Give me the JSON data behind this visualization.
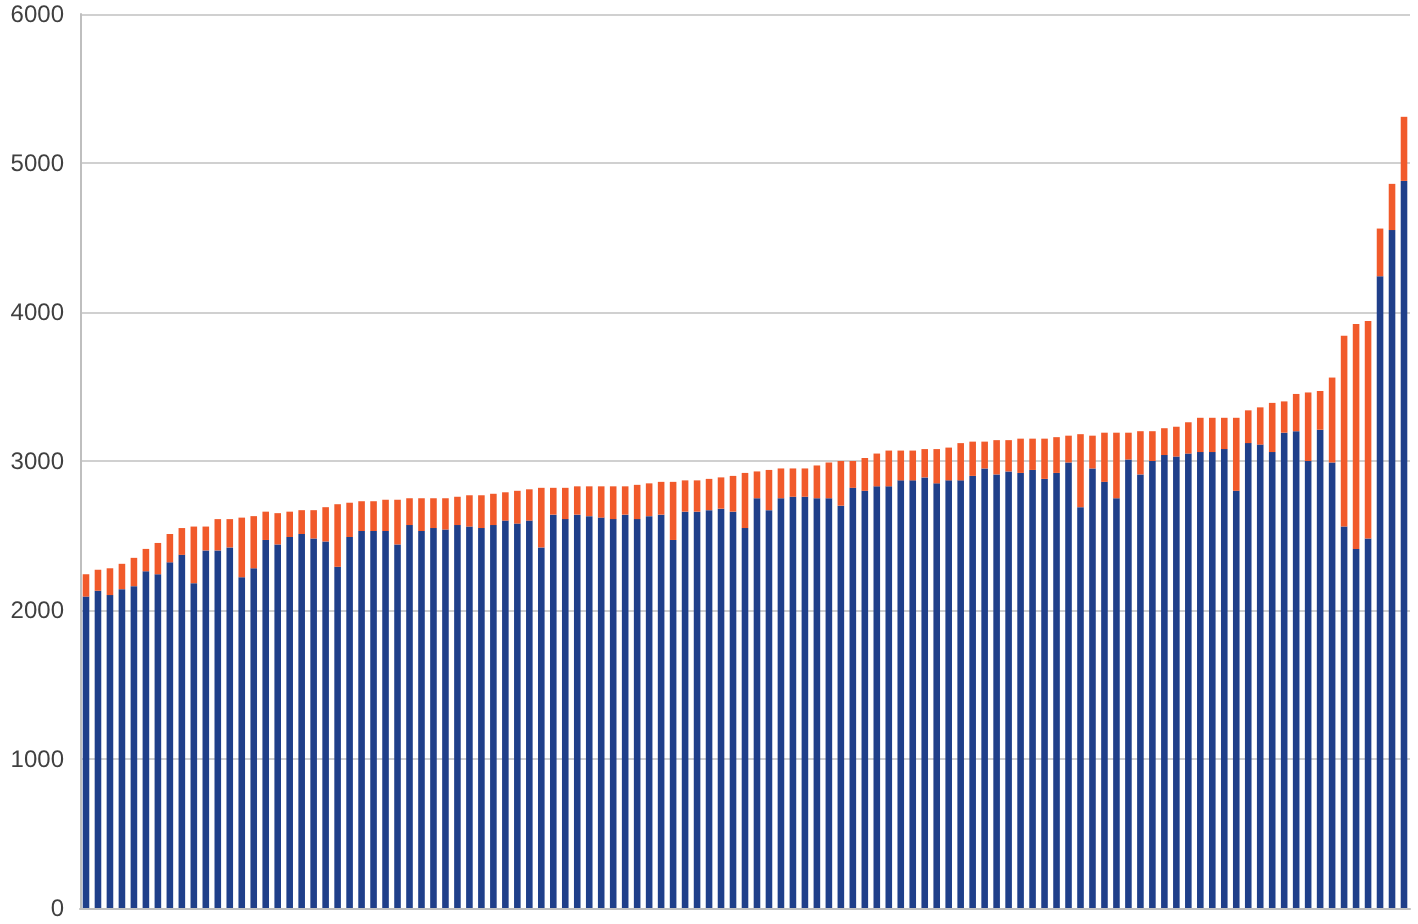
{
  "chart_data": {
    "type": "bar",
    "stacked": true,
    "grid": "y",
    "ylim": [
      0,
      6000
    ],
    "yticks": [
      0,
      1000,
      2000,
      3000,
      4000,
      5000,
      6000
    ],
    "categories": [
      null,
      null,
      null,
      null,
      null,
      null,
      null,
      null,
      null,
      null,
      null,
      null,
      null,
      null,
      null,
      null,
      null,
      null,
      null,
      null,
      null,
      null,
      null,
      null,
      null,
      null,
      null,
      null,
      null,
      null,
      null,
      null,
      null,
      null,
      null,
      null,
      null,
      null,
      null,
      null,
      null,
      null,
      null,
      null,
      null,
      null,
      null,
      null,
      null,
      null,
      null,
      null,
      null,
      null,
      null,
      null,
      null,
      null,
      null,
      null,
      null,
      null,
      null,
      null,
      null,
      null,
      null,
      null,
      null,
      null,
      null,
      null,
      null,
      null,
      null,
      null,
      null,
      null,
      null,
      null,
      null,
      null,
      null,
      null,
      null,
      null,
      null,
      null,
      null,
      null,
      null,
      null,
      null,
      null,
      null,
      null,
      null,
      null,
      null,
      null,
      null,
      null,
      null,
      null,
      null,
      null,
      null,
      null,
      null,
      null,
      null
    ],
    "series": [
      {
        "color": "#1f3f8a",
        "values": [
          2090,
          2130,
          2100,
          2140,
          2160,
          2260,
          2240,
          2320,
          2370,
          2180,
          2400,
          2400,
          2420,
          2220,
          2280,
          2470,
          2440,
          2490,
          2510,
          2480,
          2460,
          2290,
          2490,
          2530,
          2530,
          2530,
          2440,
          2570,
          2530,
          2550,
          2540,
          2570,
          2560,
          2550,
          2570,
          2600,
          2580,
          2600,
          2420,
          2640,
          2610,
          2640,
          2630,
          2620,
          2610,
          2640,
          2610,
          2630,
          2640,
          2470,
          2660,
          2660,
          2670,
          2680,
          2660,
          2550,
          2750,
          2670,
          2750,
          2760,
          2760,
          2750,
          2750,
          2700,
          2820,
          2800,
          2830,
          2830,
          2870,
          2870,
          2890,
          2850,
          2870,
          2870,
          2900,
          2950,
          2910,
          2930,
          2920,
          2940,
          2880,
          2920,
          2990,
          2690,
          2950,
          2860,
          2750,
          3010,
          2910,
          3000,
          3040,
          3030,
          3050,
          3060,
          3060,
          3080,
          2800,
          3120,
          3110,
          3060,
          3190,
          3200,
          3000,
          3210,
          2990,
          2560,
          2410,
          2480,
          4240,
          4550,
          4880
        ]
      },
      {
        "color": "#f15a2b",
        "values": [
          150,
          140,
          180,
          170,
          190,
          150,
          210,
          190,
          180,
          380,
          160,
          210,
          190,
          400,
          350,
          190,
          210,
          170,
          160,
          190,
          230,
          420,
          230,
          200,
          200,
          210,
          300,
          180,
          220,
          200,
          210,
          190,
          210,
          220,
          210,
          190,
          220,
          210,
          400,
          180,
          210,
          190,
          200,
          210,
          220,
          190,
          230,
          220,
          220,
          390,
          210,
          210,
          210,
          210,
          240,
          370,
          180,
          270,
          200,
          190,
          190,
          220,
          240,
          300,
          180,
          220,
          220,
          240,
          200,
          200,
          190,
          230,
          220,
          250,
          230,
          180,
          230,
          210,
          230,
          210,
          270,
          240,
          180,
          490,
          220,
          330,
          440,
          180,
          290,
          200,
          180,
          200,
          210,
          230,
          230,
          210,
          490,
          220,
          250,
          330,
          210,
          250,
          460,
          260,
          570,
          1280,
          1510,
          1460,
          320,
          310,
          430
        ]
      }
    ]
  }
}
